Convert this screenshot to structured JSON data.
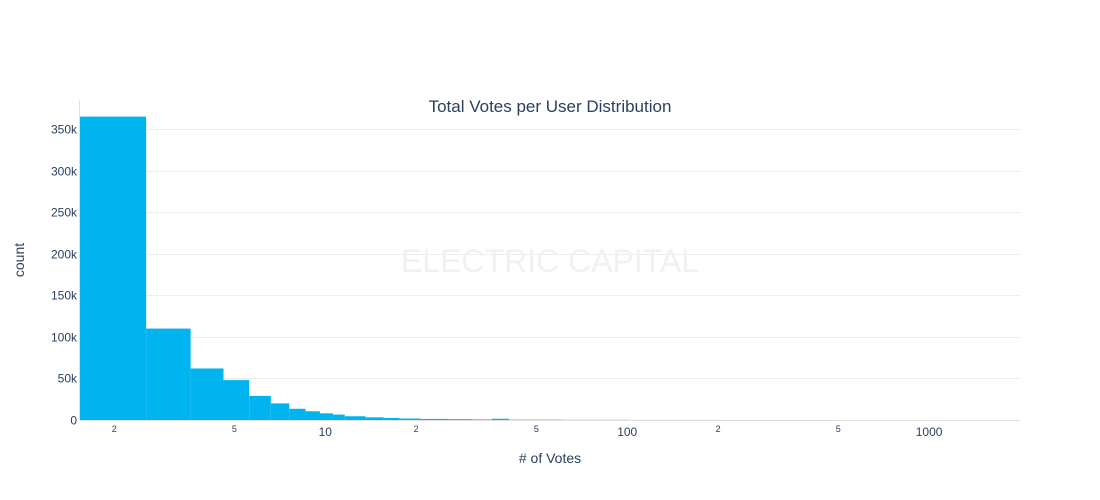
{
  "chart_data": {
    "type": "bar",
    "title": "Total Votes per User Distribution",
    "xlabel": "# of Votes",
    "ylabel": "count",
    "watermark": "ELECTRIC CAPITAL",
    "x_scale": "log",
    "xlim": [
      1.54,
      2000
    ],
    "ylim": [
      0,
      385000
    ],
    "grid": true,
    "bar_color": "#00b4f0",
    "grid_color": "#eeeeee",
    "text_color": "#2a3f5f",
    "watermark_color": "#f1f1f1",
    "y_ticks": [
      {
        "value": 0,
        "label": "0"
      },
      {
        "value": 50000,
        "label": "50k"
      },
      {
        "value": 100000,
        "label": "100k"
      },
      {
        "value": 150000,
        "label": "150k"
      },
      {
        "value": 200000,
        "label": "200k"
      },
      {
        "value": 250000,
        "label": "250k"
      },
      {
        "value": 300000,
        "label": "300k"
      },
      {
        "value": 350000,
        "label": "350k"
      }
    ],
    "x_ticks_major": [
      {
        "value": 10,
        "label": "10"
      },
      {
        "value": 100,
        "label": "100"
      },
      {
        "value": 1000,
        "label": "1000"
      }
    ],
    "x_ticks_minor": [
      {
        "value": 2,
        "label": "2"
      },
      {
        "value": 5,
        "label": "5"
      },
      {
        "value": 20,
        "label": "2"
      },
      {
        "value": 50,
        "label": "5"
      },
      {
        "value": 200,
        "label": "2"
      },
      {
        "value": 500,
        "label": "5"
      }
    ],
    "bins": [
      {
        "x0": 1.54,
        "x1": 2.55,
        "count": 365000
      },
      {
        "x0": 2.55,
        "x1": 3.58,
        "count": 110000
      },
      {
        "x0": 3.58,
        "x1": 4.6,
        "count": 62000
      },
      {
        "x0": 4.6,
        "x1": 5.6,
        "count": 48000
      },
      {
        "x0": 5.6,
        "x1": 6.6,
        "count": 29000
      },
      {
        "x0": 6.6,
        "x1": 7.6,
        "count": 20000
      },
      {
        "x0": 7.6,
        "x1": 8.6,
        "count": 13500
      },
      {
        "x0": 8.6,
        "x1": 9.6,
        "count": 10500
      },
      {
        "x0": 9.6,
        "x1": 10.6,
        "count": 8000
      },
      {
        "x0": 10.6,
        "x1": 11.6,
        "count": 6500
      },
      {
        "x0": 11.6,
        "x1": 13.6,
        "count": 4500
      },
      {
        "x0": 13.6,
        "x1": 15.6,
        "count": 3200
      },
      {
        "x0": 15.6,
        "x1": 17.6,
        "count": 2400
      },
      {
        "x0": 17.6,
        "x1": 20.6,
        "count": 1800
      },
      {
        "x0": 20.6,
        "x1": 25.6,
        "count": 1300
      },
      {
        "x0": 25.6,
        "x1": 30.6,
        "count": 1000
      },
      {
        "x0": 30.6,
        "x1": 35.6,
        "count": 700
      },
      {
        "x0": 35.6,
        "x1": 40.6,
        "count": 1500
      },
      {
        "x0": 40.6,
        "x1": 60.6,
        "count": 400
      },
      {
        "x0": 60.6,
        "x1": 100.6,
        "count": 200
      },
      {
        "x0": 100.6,
        "x1": 200.6,
        "count": 100
      },
      {
        "x0": 200.6,
        "x1": 500.6,
        "count": 50
      },
      {
        "x0": 500.6,
        "x1": 1500.6,
        "count": 20
      }
    ]
  }
}
